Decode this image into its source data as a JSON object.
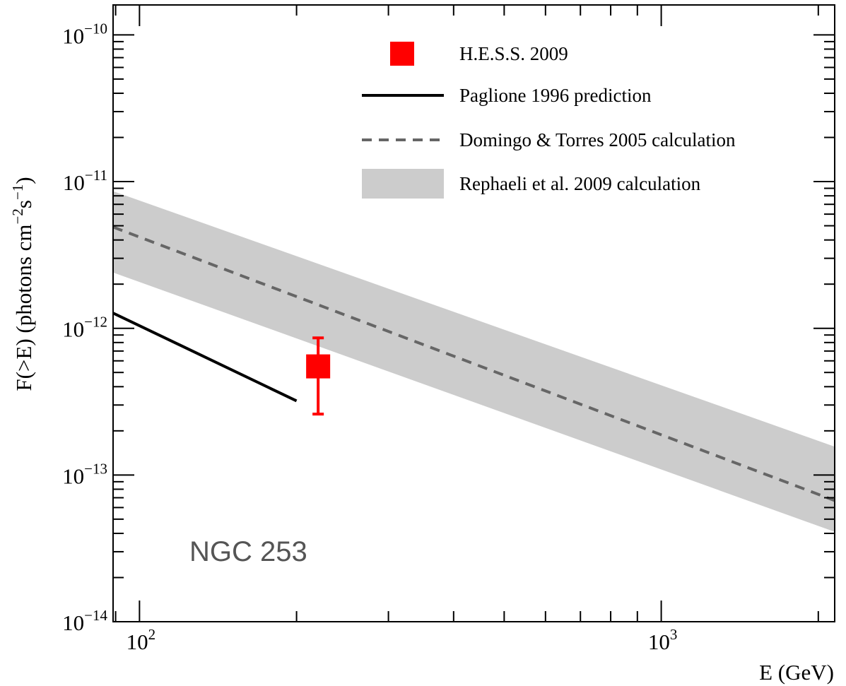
{
  "chart_data": {
    "type": "line",
    "title": "",
    "annotation": "NGC 253",
    "xlabel": "E (GeV)",
    "ylabel": {
      "prefix": "F(>E) (photons cm",
      "exp1": "−2",
      "mid": "s",
      "exp2": "−1",
      "suffix": ")"
    },
    "x_scale": "log",
    "y_scale": "log",
    "xlim": [
      89,
      2150
    ],
    "ylim": [
      1e-14,
      1.6e-10
    ],
    "grid": false,
    "legend_position": "top-right",
    "x_ticks": [
      {
        "value": 100,
        "base": "10",
        "exp": "2"
      },
      {
        "value": 1000,
        "base": "10",
        "exp": "3"
      }
    ],
    "y_ticks": [
      {
        "value": 1e-10,
        "base": "10",
        "exp": "−10"
      },
      {
        "value": 1e-11,
        "base": "10",
        "exp": "−11"
      },
      {
        "value": 1e-12,
        "base": "10",
        "exp": "−12"
      },
      {
        "value": 1e-13,
        "base": "10",
        "exp": "−13"
      },
      {
        "value": 1e-14,
        "base": "10",
        "exp": "−14"
      }
    ],
    "series": [
      {
        "name": "H.E.S.S. 2009",
        "kind": "point",
        "color": "#ff0000",
        "x": [
          220
        ],
        "y": [
          5.5e-13
        ],
        "y_err_low": [
          2.6e-13
        ],
        "y_err_high": [
          8.6e-13
        ]
      },
      {
        "name": "Paglione 1996 prediction",
        "kind": "line",
        "color": "#000000",
        "x": [
          89,
          200
        ],
        "y": [
          1.27e-12,
          3.2e-13
        ]
      },
      {
        "name": "Domingo & Torres 2005 calculation",
        "kind": "dashed-line",
        "color": "#666666",
        "x": [
          89,
          2150
        ],
        "y": [
          4.9e-12,
          6.7e-14
        ]
      },
      {
        "name": "Rephaeli et al. 2009 calculation",
        "kind": "band",
        "color": "#cccccc",
        "x": [
          89,
          2150
        ],
        "y_low": [
          2.4e-12,
          4.1e-14
        ],
        "y_high": [
          8.6e-12,
          1.56e-13
        ]
      }
    ]
  }
}
